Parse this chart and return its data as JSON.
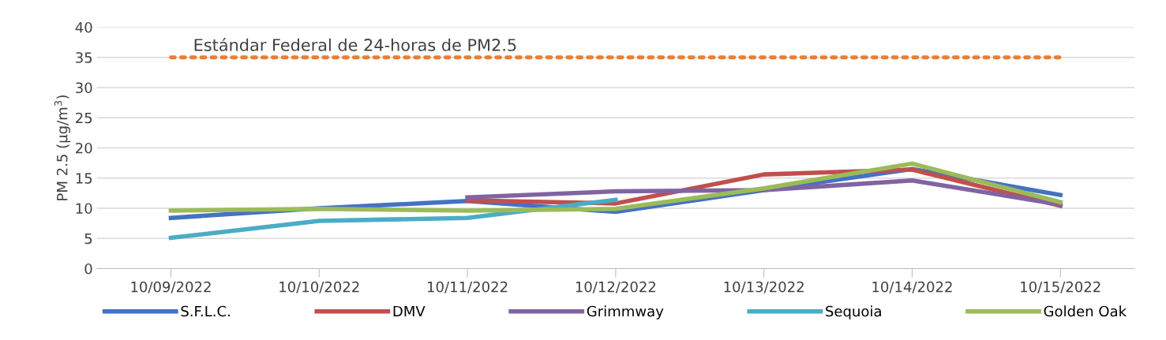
{
  "chart_data": {
    "type": "line",
    "ylabel": "PM 2.5 (µg/m$^{3}$)",
    "categories": [
      "10/09/2022",
      "10/10/2022",
      "10/11/2022",
      "10/12/2022",
      "10/13/2022",
      "10/14/2022",
      "10/15/2022"
    ],
    "series": [
      {
        "name": "S.F.L.C.",
        "color": "#4472c4",
        "values": [
          8.4,
          10.0,
          11.2,
          9.4,
          13.0,
          16.5,
          12.2
        ]
      },
      {
        "name": "DMV",
        "color": "#c0504d",
        "values": [
          null,
          null,
          11.3,
          10.8,
          15.6,
          16.4,
          10.4
        ]
      },
      {
        "name": "Grimmway",
        "color": "#8064a2",
        "values": [
          null,
          null,
          11.8,
          12.8,
          13.0,
          14.6,
          10.6
        ]
      },
      {
        "name": "Sequoia",
        "color": "#4bacc6",
        "values": [
          5.1,
          7.9,
          8.4,
          11.4,
          null,
          null,
          null
        ]
      },
      {
        "name": "Golden Oak",
        "color": "#9bbb59",
        "values": [
          9.6,
          9.9,
          9.6,
          9.9,
          13.3,
          17.4,
          11.0
        ]
      }
    ],
    "ylim": [
      0,
      40
    ],
    "yticks": [
      0,
      5,
      10,
      15,
      20,
      25,
      30,
      35,
      40
    ],
    "ref_lines": [
      {
        "axis": "y",
        "value": 35,
        "label": "Estándar Federal de 24-horas de PM2.5",
        "color": "#ed7d31",
        "line_style": "dotted"
      }
    ],
    "grid": "y",
    "legend": "bottom",
    "line_style": "solid",
    "marker": "none"
  }
}
